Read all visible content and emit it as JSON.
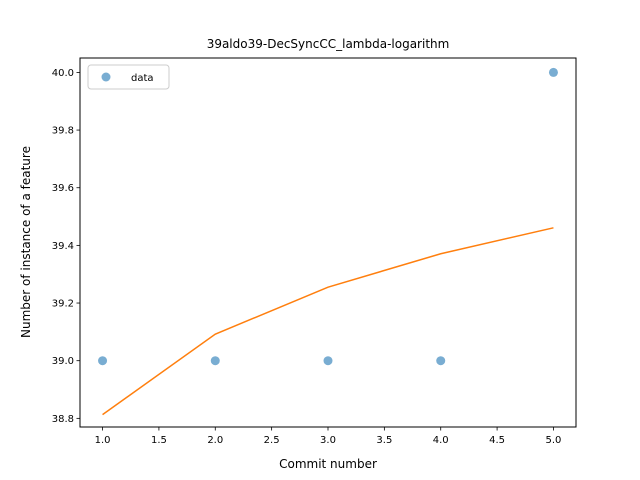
{
  "chart_data": {
    "type": "scatter",
    "title": "39aldo39-DecSyncCC_lambda-logarithm",
    "xlabel": "Commit number",
    "ylabel": "Number of instance of a feature",
    "xlim": [
      0.8,
      5.2
    ],
    "ylim": [
      38.77,
      40.05
    ],
    "xticks": [
      1.0,
      1.5,
      2.0,
      2.5,
      3.0,
      3.5,
      4.0,
      4.5,
      5.0
    ],
    "xtick_labels": [
      "1.0",
      "1.5",
      "2.0",
      "2.5",
      "3.0",
      "3.5",
      "4.0",
      "4.5",
      "5.0"
    ],
    "yticks": [
      38.8,
      39.0,
      39.2,
      39.4,
      39.6,
      39.8,
      40.0
    ],
    "ytick_labels": [
      "38.8",
      "39.0",
      "39.2",
      "39.4",
      "39.6",
      "39.8",
      "40.0"
    ],
    "grid": false,
    "legend_position": "top-left",
    "series": [
      {
        "name": "data",
        "kind": "scatter",
        "color": "#1f77b4",
        "x": [
          1,
          2,
          3,
          4,
          5
        ],
        "y": [
          39.0,
          39.0,
          39.0,
          39.0,
          40.0
        ]
      },
      {
        "kind": "line",
        "color": "#ff7f0e",
        "x": [
          1,
          2,
          3,
          4,
          5
        ],
        "y": [
          38.813,
          39.092,
          39.255,
          39.371,
          39.461
        ]
      }
    ]
  }
}
